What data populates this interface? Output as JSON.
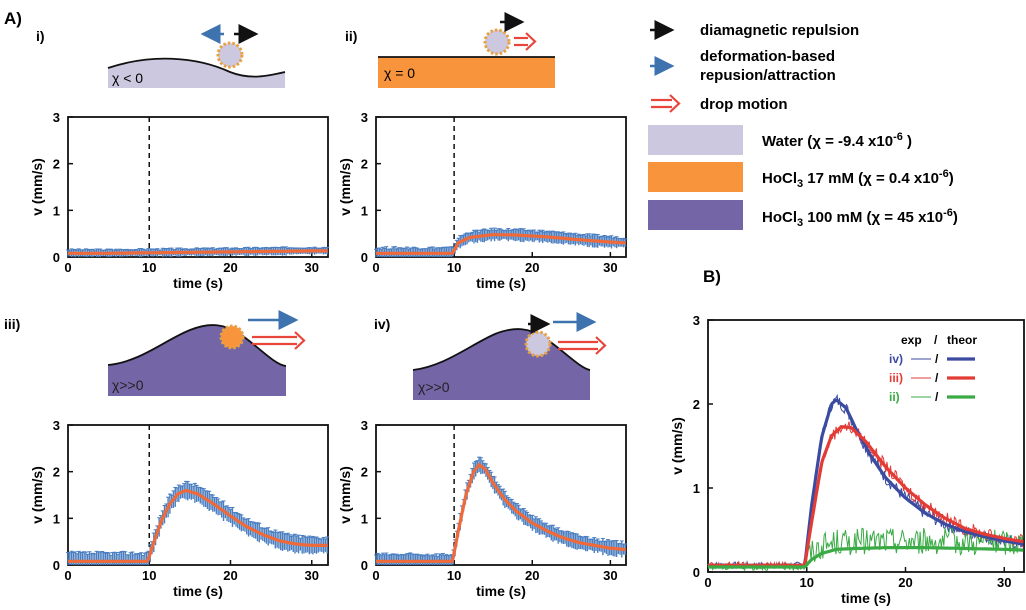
{
  "figure": {
    "panel_a_label": "A)",
    "panel_b_label": "B)"
  },
  "colors": {
    "black_arrow": "#111111",
    "blue_arrow": "#3f73b0",
    "red_arrow": "#e8463a",
    "water": "#ccc8df",
    "hocl17": "#f7943c",
    "hocl100": "#7466a6",
    "err_bar": "#4a7ec0",
    "mean_line": "#ee6a3a",
    "iv_color": "#3b4ba0",
    "iii_color": "#e33b35",
    "ii_color": "#3aaa45"
  },
  "legend": {
    "arrows": [
      {
        "text": "diamagnetic repulsion",
        "icon": "black-arrow-icon"
      },
      {
        "text": "deformation-based",
        "text2": "repusion/attraction",
        "icon": "blue-arrow-icon"
      },
      {
        "text": "drop motion",
        "icon": "red-double-arrow-icon"
      }
    ],
    "fluids": [
      {
        "name": "Water",
        "chi": "(χ = -9.4 x10",
        "exp": "-6",
        "tail": " )"
      },
      {
        "name": "HoCl",
        "sub": "3",
        "conc": " 17 mM (χ = 0.4 x10",
        "exp": "-6",
        "tail": ")"
      },
      {
        "name": "HoCl",
        "sub": "3",
        "conc": " 100 mM (χ = 45 x10",
        "exp": "-6",
        "tail": ")"
      }
    ]
  },
  "schematics": {
    "i": {
      "roman": "i)",
      "chi": "χ < 0"
    },
    "ii": {
      "roman": "ii)",
      "chi": "χ = 0"
    },
    "iii": {
      "roman": "iii)",
      "chi": "χ>>0"
    },
    "iv": {
      "roman": "iv)",
      "chi": "χ>>0"
    }
  },
  "chart_data": [
    {
      "id": "A-i",
      "type": "line",
      "xlabel": "time (s)",
      "ylabel": "v (mm/s)",
      "xlim": [
        0,
        32
      ],
      "ylim": [
        0,
        3
      ],
      "xticks": [
        0,
        10,
        20,
        30
      ],
      "yticks": [
        0,
        1,
        2,
        3
      ],
      "vline_x": 10,
      "series": [
        {
          "x": [
            0,
            5,
            10,
            15,
            20,
            25,
            30,
            32
          ],
          "y": [
            0.08,
            0.08,
            0.09,
            0.1,
            0.11,
            0.12,
            0.13,
            0.13
          ],
          "err": 0.08
        }
      ]
    },
    {
      "id": "A-ii",
      "type": "line",
      "xlabel": "time (s)",
      "ylabel": "v (mm/s)",
      "xlim": [
        0,
        32
      ],
      "ylim": [
        0,
        3
      ],
      "xticks": [
        0,
        10,
        20,
        30
      ],
      "yticks": [
        0,
        1,
        2,
        3
      ],
      "vline_x": 10,
      "series": [
        {
          "x": [
            0,
            5,
            9.8,
            10.5,
            12,
            15,
            18,
            22,
            26,
            30,
            32
          ],
          "y": [
            0.08,
            0.08,
            0.08,
            0.3,
            0.42,
            0.48,
            0.47,
            0.43,
            0.37,
            0.32,
            0.3
          ],
          "err": 0.12
        }
      ]
    },
    {
      "id": "A-iii",
      "type": "line",
      "xlabel": "time (s)",
      "ylabel": "v (mm/s)",
      "xlim": [
        0,
        32
      ],
      "ylim": [
        0,
        3
      ],
      "xticks": [
        0,
        10,
        20,
        30
      ],
      "yticks": [
        0,
        1,
        2,
        3
      ],
      "vline_x": 10,
      "series": [
        {
          "x": [
            0,
            5,
            9.8,
            10.5,
            11.5,
            12.5,
            13.5,
            14.5,
            16,
            18,
            20,
            22,
            24,
            26,
            28,
            30,
            32
          ],
          "y": [
            0.08,
            0.08,
            0.08,
            0.45,
            0.95,
            1.3,
            1.52,
            1.6,
            1.52,
            1.3,
            1.05,
            0.82,
            0.65,
            0.52,
            0.45,
            0.42,
            0.42
          ],
          "err": 0.18
        }
      ]
    },
    {
      "id": "A-iv",
      "type": "line",
      "xlabel": "time (s)",
      "ylabel": "v (mm/s)",
      "xlim": [
        0,
        32
      ],
      "ylim": [
        0,
        3
      ],
      "xticks": [
        0,
        10,
        20,
        30
      ],
      "yticks": [
        0,
        1,
        2,
        3
      ],
      "vline_x": 10,
      "series": [
        {
          "x": [
            0,
            5,
            9.8,
            10.5,
            11.5,
            12.5,
            13.2,
            14,
            15,
            16.5,
            18,
            20,
            22,
            24,
            26,
            28,
            30,
            32
          ],
          "y": [
            0.08,
            0.08,
            0.08,
            0.7,
            1.5,
            2.0,
            2.15,
            2.05,
            1.75,
            1.4,
            1.15,
            0.9,
            0.72,
            0.58,
            0.48,
            0.42,
            0.36,
            0.33
          ],
          "err": 0.15
        }
      ]
    },
    {
      "id": "B",
      "type": "line",
      "xlabel": "time (s)",
      "ylabel": "v (mm/s)",
      "xlim": [
        0,
        32
      ],
      "ylim": [
        0,
        3
      ],
      "xticks": [
        0,
        10,
        20,
        30
      ],
      "yticks": [
        0,
        1,
        2,
        3
      ],
      "legend_header": [
        "exp",
        "/",
        "theor"
      ],
      "legend_rows": [
        {
          "label": "iv)",
          "slash": "/"
        },
        {
          "label": "iii)",
          "slash": "/"
        },
        {
          "label": "ii)",
          "slash": "/"
        }
      ],
      "series": [
        {
          "label": "iv)",
          "x": [
            0,
            9.8,
            10.5,
            11.5,
            12.5,
            13,
            14,
            15,
            16.5,
            18,
            20,
            22,
            24,
            26,
            28,
            30,
            32
          ],
          "y": [
            0.08,
            0.08,
            0.8,
            1.6,
            2.0,
            2.05,
            1.95,
            1.7,
            1.38,
            1.12,
            0.88,
            0.7,
            0.57,
            0.48,
            0.42,
            0.37,
            0.33
          ]
        },
        {
          "label": "iii)",
          "x": [
            0,
            9.8,
            10.5,
            11.5,
            12.5,
            13.5,
            14.5,
            16,
            18,
            20,
            22,
            24,
            26,
            28,
            30,
            32
          ],
          "y": [
            0.08,
            0.08,
            0.6,
            1.3,
            1.62,
            1.73,
            1.72,
            1.55,
            1.25,
            1.0,
            0.8,
            0.64,
            0.52,
            0.45,
            0.4,
            0.36
          ]
        },
        {
          "label": "ii)",
          "x": [
            0,
            9.8,
            10.5,
            11.5,
            13,
            15,
            18,
            22,
            26,
            30,
            32
          ],
          "y": [
            0.06,
            0.06,
            0.15,
            0.22,
            0.27,
            0.28,
            0.29,
            0.29,
            0.28,
            0.27,
            0.26
          ],
          "noise": 0.16
        }
      ]
    }
  ]
}
